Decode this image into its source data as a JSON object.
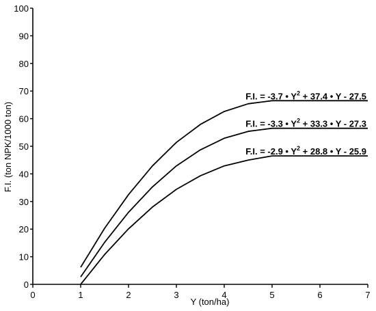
{
  "chart_data": {
    "type": "line",
    "xlabel": "Y (ton/ha)",
    "ylabel": "F.I. (ton NPK/1000 ton)",
    "xlim": [
      0,
      7
    ],
    "ylim": [
      0,
      100
    ],
    "xticks": [
      "0",
      "1",
      "2",
      "3",
      "4",
      "5",
      "6",
      "7"
    ],
    "yticks": [
      "0",
      "10",
      "20",
      "30",
      "40",
      "50",
      "60",
      "70",
      "80",
      "90",
      "100"
    ],
    "grid": false,
    "series": [
      {
        "equation": {
          "prefix": "F.I. = -3.7 • Y",
          "sup": "2",
          "suffix": " + 37.4 • Y - 27.5"
        },
        "x": [
          1,
          1.5,
          2,
          2.5,
          3,
          3.5,
          4,
          4.5,
          5,
          5.5,
          6,
          6.5,
          7
        ],
        "y": [
          6.2,
          20.3,
          32.5,
          42.9,
          51.4,
          57.9,
          62.6,
          65.4,
          66.5,
          66.5,
          66.5,
          66.5,
          66.5
        ]
      },
      {
        "equation": {
          "prefix": "F.I. = -3.3 • Y",
          "sup": "2",
          "suffix": " + 33.3 • Y - 27.3"
        },
        "x": [
          1,
          1.5,
          2,
          2.5,
          3,
          3.5,
          4,
          4.5,
          5,
          5.5,
          6,
          6.5,
          7
        ],
        "y": [
          2.7,
          15.2,
          26.1,
          35.3,
          42.9,
          48.7,
          52.9,
          55.4,
          56.5,
          56.5,
          56.5,
          56.5,
          56.5
        ]
      },
      {
        "equation": {
          "prefix": "F.I. = -2.9 • Y",
          "sup": "2",
          "suffix": " + 28.8 • Y - 25.9"
        },
        "x": [
          1,
          1.5,
          2,
          2.5,
          3,
          3.5,
          4,
          4.5,
          5,
          5.5,
          6,
          6.5,
          7
        ],
        "y": [
          0,
          10.8,
          20.1,
          28.0,
          34.4,
          39.3,
          42.9,
          45.0,
          46.5,
          46.5,
          46.5,
          46.5,
          46.5
        ]
      }
    ]
  }
}
